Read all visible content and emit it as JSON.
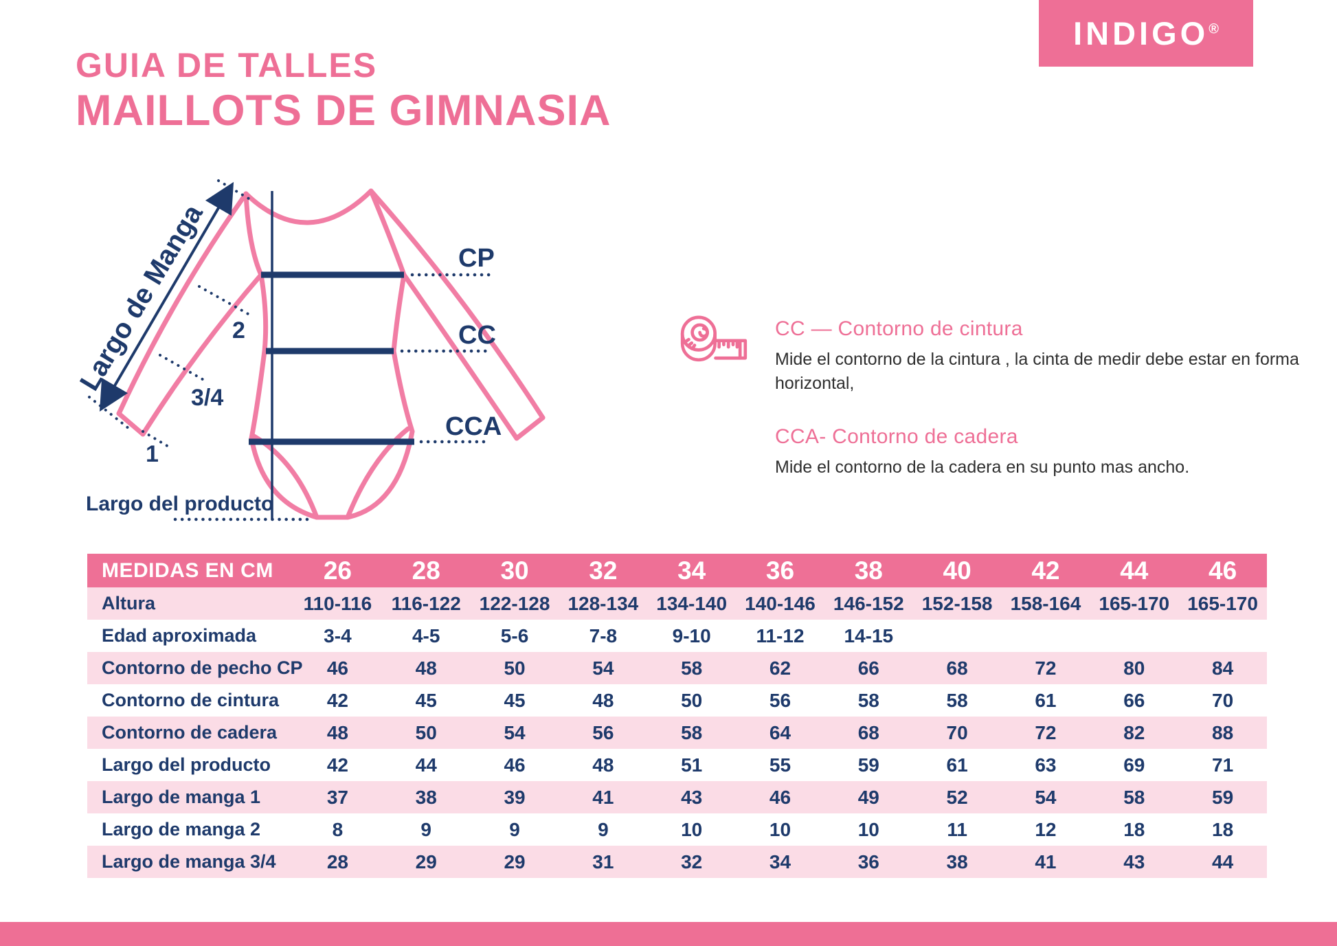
{
  "brand": {
    "logo_text": "INDIGO",
    "registered_mark": "®"
  },
  "header": {
    "title_line1": "GUIA DE TALLES",
    "title_line2": "MAILLOTS DE GIMNASIA"
  },
  "diagram": {
    "arrow_label": "Largo de Manga",
    "marker_2": "2",
    "marker_3_4": "3/4",
    "marker_1": "1",
    "product_length_label": "Largo del producto",
    "chest_label": "CP",
    "waist_label": "CC",
    "hip_label": "CCA"
  },
  "info": {
    "cc_heading": "CC — Contorno de cintura",
    "cc_text": "Mide el contorno de la cintura , la cinta de medir debe estar en forma horizontal,",
    "cca_heading": "CCA- Contorno de cadera",
    "cca_text": "Mide el contorno de la cadera en su punto mas ancho."
  },
  "colors": {
    "pink": "#ee6f96",
    "table_header_pink": "#ee7096",
    "row_pink": "#fbdce6",
    "navy": "#1e3a6b",
    "leotard_pink": "#f17da4",
    "footer_pink": "#ee6f95"
  },
  "table": {
    "header_label": "MEDIDAS EN CM",
    "sizes": [
      "26",
      "28",
      "30",
      "32",
      "34",
      "36",
      "38",
      "40",
      "42",
      "44",
      "46"
    ],
    "rows": [
      {
        "label": "Altura",
        "values": [
          "110-116",
          "116-122",
          "122-128",
          "128-134",
          "134-140",
          "140-146",
          "146-152",
          "152-158",
          "158-164",
          "165-170",
          "165-170"
        ]
      },
      {
        "label": "Edad aproximada",
        "values": [
          "3-4",
          "4-5",
          "5-6",
          "7-8",
          "9-10",
          "11-12",
          "14-15",
          "",
          "",
          "",
          ""
        ]
      },
      {
        "label": "Contorno de pecho CP",
        "values": [
          "46",
          "48",
          "50",
          "54",
          "58",
          "62",
          "66",
          "68",
          "72",
          "80",
          "84"
        ]
      },
      {
        "label": "Contorno de cintura",
        "values": [
          "42",
          "45",
          "45",
          "48",
          "50",
          "56",
          "58",
          "58",
          "61",
          "66",
          "70"
        ]
      },
      {
        "label": "Contorno de cadera",
        "values": [
          "48",
          "50",
          "54",
          "56",
          "58",
          "64",
          "68",
          "70",
          "72",
          "82",
          "88"
        ]
      },
      {
        "label": "Largo del producto",
        "values": [
          "42",
          "44",
          "46",
          "48",
          "51",
          "55",
          "59",
          "61",
          "63",
          "69",
          "71"
        ]
      },
      {
        "label": "Largo de manga 1",
        "values": [
          "37",
          "38",
          "39",
          "41",
          "43",
          "46",
          "49",
          "52",
          "54",
          "58",
          "59"
        ]
      },
      {
        "label": "Largo de manga 2",
        "values": [
          "8",
          "9",
          "9",
          "9",
          "10",
          "10",
          "10",
          "11",
          "12",
          "18",
          "18"
        ]
      },
      {
        "label": "Largo de manga 3/4",
        "values": [
          "28",
          "29",
          "29",
          "31",
          "32",
          "34",
          "36",
          "38",
          "41",
          "43",
          "44"
        ]
      }
    ]
  }
}
